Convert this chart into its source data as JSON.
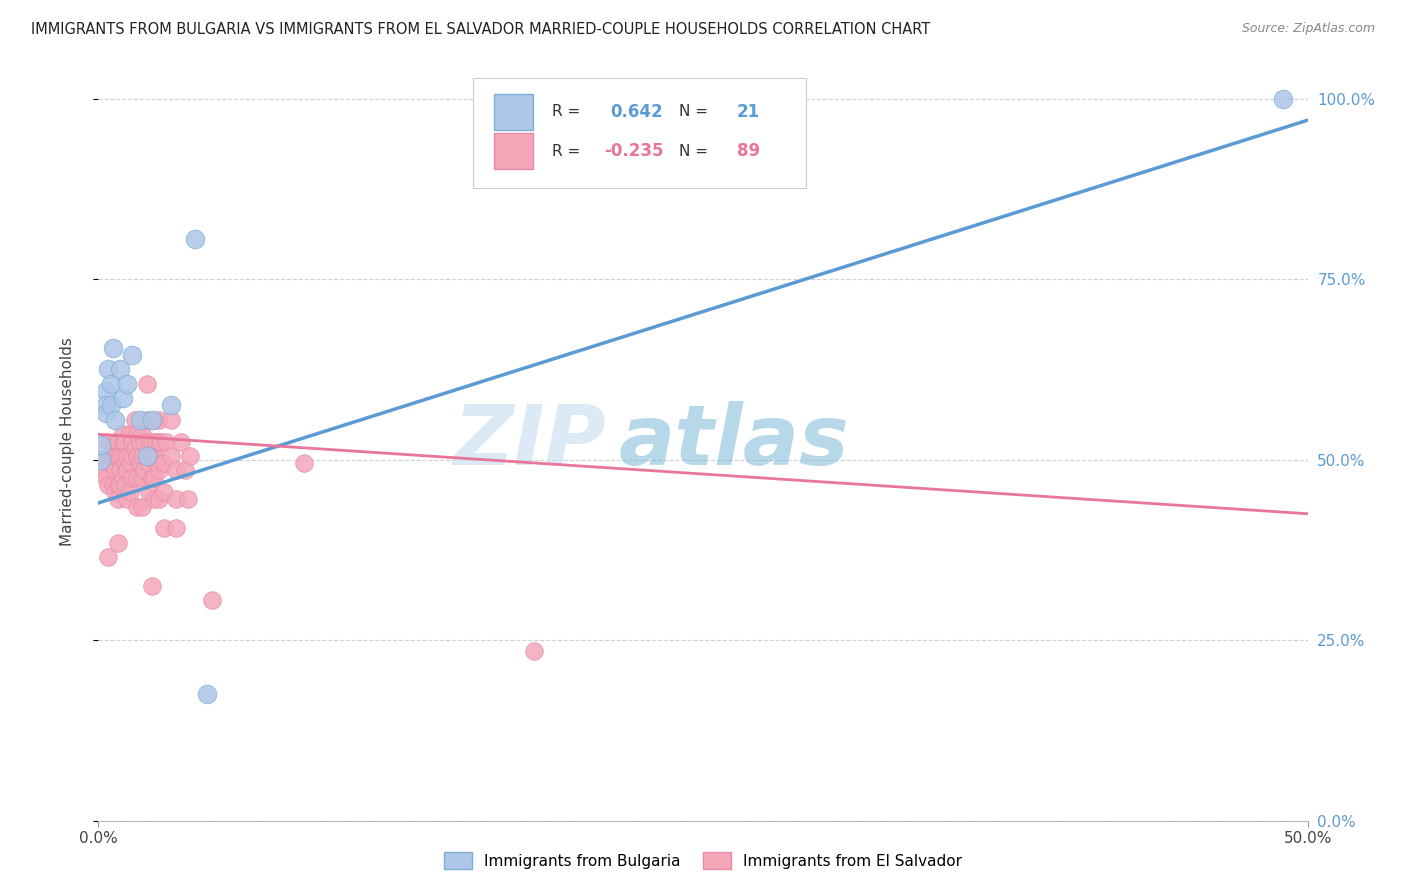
{
  "title": "IMMIGRANTS FROM BULGARIA VS IMMIGRANTS FROM EL SALVADOR MARRIED-COUPLE HOUSEHOLDS CORRELATION CHART",
  "source": "Source: ZipAtlas.com",
  "ylabel_label": "Married-couple Households",
  "xlim": [
    0.0,
    0.5
  ],
  "ylim": [
    0.0,
    1.05
  ],
  "xticks": [
    0.0,
    0.5
  ],
  "xtick_labels": [
    "0.0%",
    "50.0%"
  ],
  "yticks": [
    0.0,
    0.25,
    0.5,
    0.75,
    1.0
  ],
  "ytick_labels": [
    "0.0%",
    "25.0%",
    "50.0%",
    "75.0%",
    "100.0%"
  ],
  "watermark_zip": "ZIP",
  "watermark_atlas": "atlas",
  "legend_R1": "0.642",
  "legend_N1": "21",
  "legend_R2": "-0.235",
  "legend_N2": "89",
  "bulgaria_points": [
    [
      0.001,
      0.5
    ],
    [
      0.001,
      0.52
    ],
    [
      0.003,
      0.595
    ],
    [
      0.003,
      0.575
    ],
    [
      0.003,
      0.565
    ],
    [
      0.004,
      0.625
    ],
    [
      0.005,
      0.575
    ],
    [
      0.005,
      0.605
    ],
    [
      0.006,
      0.655
    ],
    [
      0.007,
      0.555
    ],
    [
      0.009,
      0.625
    ],
    [
      0.01,
      0.585
    ],
    [
      0.012,
      0.605
    ],
    [
      0.014,
      0.645
    ],
    [
      0.017,
      0.555
    ],
    [
      0.02,
      0.505
    ],
    [
      0.022,
      0.555
    ],
    [
      0.03,
      0.575
    ],
    [
      0.04,
      0.805
    ],
    [
      0.045,
      0.175
    ],
    [
      0.49,
      1.0
    ]
  ],
  "bulgaria_line_x": [
    0.0,
    0.5
  ],
  "bulgaria_line_y": [
    0.44,
    0.97
  ],
  "salvador_points": [
    [
      0.001,
      0.5
    ],
    [
      0.002,
      0.485
    ],
    [
      0.003,
      0.475
    ],
    [
      0.004,
      0.525
    ],
    [
      0.004,
      0.465
    ],
    [
      0.005,
      0.505
    ],
    [
      0.005,
      0.495
    ],
    [
      0.006,
      0.515
    ],
    [
      0.006,
      0.465
    ],
    [
      0.007,
      0.525
    ],
    [
      0.007,
      0.485
    ],
    [
      0.007,
      0.505
    ],
    [
      0.007,
      0.455
    ],
    [
      0.008,
      0.525
    ],
    [
      0.008,
      0.505
    ],
    [
      0.008,
      0.465
    ],
    [
      0.008,
      0.445
    ],
    [
      0.009,
      0.485
    ],
    [
      0.009,
      0.505
    ],
    [
      0.009,
      0.465
    ],
    [
      0.01,
      0.525
    ],
    [
      0.01,
      0.505
    ],
    [
      0.01,
      0.475
    ],
    [
      0.01,
      0.535
    ],
    [
      0.011,
      0.495
    ],
    [
      0.011,
      0.465
    ],
    [
      0.011,
      0.525
    ],
    [
      0.012,
      0.505
    ],
    [
      0.012,
      0.485
    ],
    [
      0.012,
      0.445
    ],
    [
      0.012,
      0.505
    ],
    [
      0.013,
      0.535
    ],
    [
      0.013,
      0.495
    ],
    [
      0.013,
      0.455
    ],
    [
      0.014,
      0.525
    ],
    [
      0.014,
      0.505
    ],
    [
      0.014,
      0.475
    ],
    [
      0.015,
      0.555
    ],
    [
      0.015,
      0.515
    ],
    [
      0.016,
      0.535
    ],
    [
      0.016,
      0.505
    ],
    [
      0.016,
      0.475
    ],
    [
      0.016,
      0.435
    ],
    [
      0.017,
      0.525
    ],
    [
      0.017,
      0.495
    ],
    [
      0.018,
      0.535
    ],
    [
      0.018,
      0.505
    ],
    [
      0.018,
      0.475
    ],
    [
      0.018,
      0.435
    ],
    [
      0.019,
      0.525
    ],
    [
      0.019,
      0.485
    ],
    [
      0.02,
      0.605
    ],
    [
      0.02,
      0.555
    ],
    [
      0.021,
      0.525
    ],
    [
      0.021,
      0.495
    ],
    [
      0.021,
      0.455
    ],
    [
      0.022,
      0.525
    ],
    [
      0.022,
      0.505
    ],
    [
      0.022,
      0.475
    ],
    [
      0.022,
      0.325
    ],
    [
      0.023,
      0.555
    ],
    [
      0.023,
      0.505
    ],
    [
      0.023,
      0.475
    ],
    [
      0.023,
      0.445
    ],
    [
      0.024,
      0.525
    ],
    [
      0.024,
      0.495
    ],
    [
      0.025,
      0.555
    ],
    [
      0.025,
      0.525
    ],
    [
      0.025,
      0.485
    ],
    [
      0.025,
      0.445
    ],
    [
      0.026,
      0.525
    ],
    [
      0.027,
      0.495
    ],
    [
      0.027,
      0.455
    ],
    [
      0.027,
      0.405
    ],
    [
      0.028,
      0.525
    ],
    [
      0.03,
      0.555
    ],
    [
      0.03,
      0.505
    ],
    [
      0.032,
      0.485
    ],
    [
      0.032,
      0.445
    ],
    [
      0.032,
      0.405
    ],
    [
      0.034,
      0.525
    ],
    [
      0.036,
      0.485
    ],
    [
      0.037,
      0.445
    ],
    [
      0.038,
      0.505
    ],
    [
      0.047,
      0.305
    ],
    [
      0.008,
      0.385
    ],
    [
      0.004,
      0.365
    ],
    [
      0.18,
      0.235
    ],
    [
      0.085,
      0.495
    ]
  ],
  "salvador_line_x": [
    0.0,
    0.5
  ],
  "salvador_line_y": [
    0.535,
    0.425
  ],
  "blue_color": "#5b9bd5",
  "pink_color": "#e8759a",
  "blue_scatter_face": "#aec6e8",
  "pink_scatter_face": "#f4a7b9",
  "blue_scatter_edge": "#7aafd4",
  "pink_scatter_edge": "#e88aaa",
  "grid_color": "#cccccc",
  "background_color": "#ffffff",
  "right_axis_color": "#5b9bd5",
  "title_color": "#222222",
  "source_color": "#888888"
}
